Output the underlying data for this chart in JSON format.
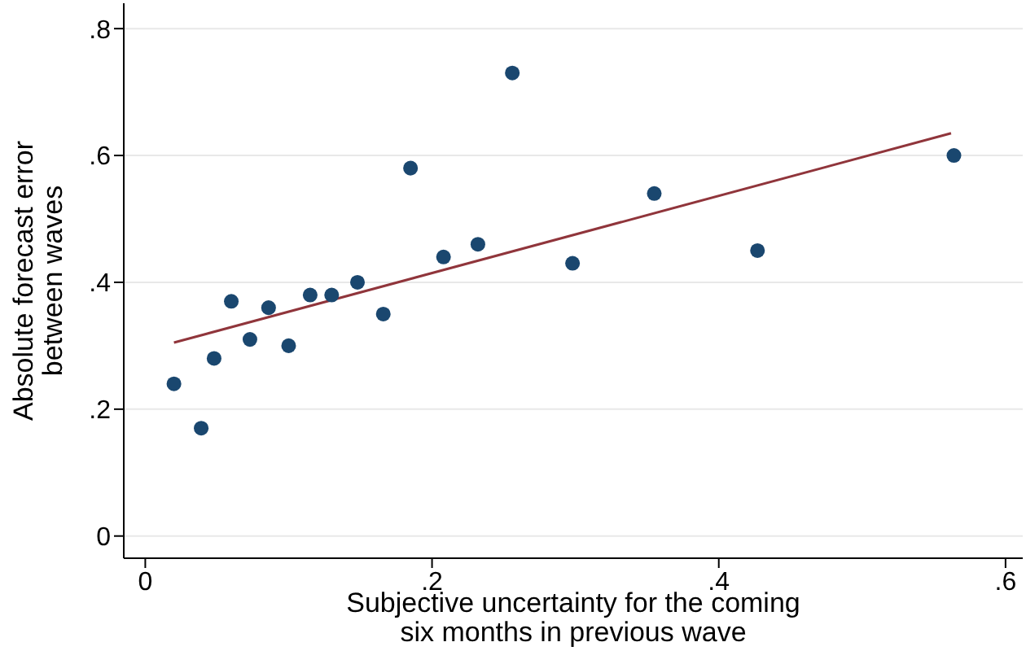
{
  "chart_data": {
    "type": "scatter",
    "xlabel": "Subjective uncertainty for the coming\nsix months in previous wave",
    "ylabel": "Absolute forecast error\nbetween waves",
    "series": [
      {
        "color": "#1a476f",
        "marker": "circle",
        "x": [
          0.02,
          0.039,
          0.048,
          0.06,
          0.073,
          0.086,
          0.1,
          0.115,
          0.13,
          0.148,
          0.166,
          0.185,
          0.208,
          0.232,
          0.256,
          0.298,
          0.355,
          0.427,
          0.564
        ],
        "values": [
          0.24,
          0.17,
          0.28,
          0.37,
          0.31,
          0.36,
          0.3,
          0.38,
          0.38,
          0.4,
          0.35,
          0.58,
          0.44,
          0.46,
          0.73,
          0.43,
          0.54,
          0.45,
          0.6
        ]
      },
      {
        "type": "line",
        "color": "#90353b",
        "x": [
          0.02,
          0.562
        ],
        "values": [
          0.305,
          0.635
        ]
      }
    ],
    "xlim": [
      -0.015,
      0.612
    ],
    "ylim": [
      -0.035,
      0.84
    ],
    "xticks": [
      0,
      {
        "value": 0.2,
        "label": ".2"
      },
      {
        "value": 0.4,
        "label": ".4"
      },
      {
        "value": 0.6,
        "label": ".6"
      }
    ],
    "yticks": [
      0,
      {
        "value": 0.2,
        "label": ".2"
      },
      {
        "value": 0.4,
        "label": ".4"
      },
      {
        "value": 0.6,
        "label": ".6"
      },
      {
        "value": 0.8,
        "label": ".8"
      }
    ],
    "grid": "y",
    "line_style": "solid",
    "legend": false
  }
}
